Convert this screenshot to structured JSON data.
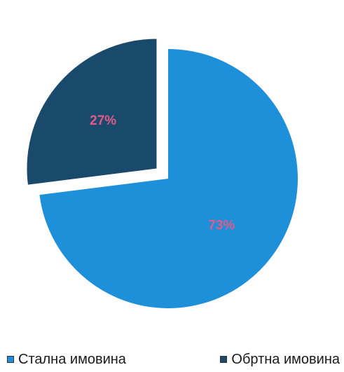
{
  "chart_data": {
    "type": "pie",
    "title": "",
    "categories": [
      "Стална имовина",
      "Обртна имовина"
    ],
    "values": [
      73,
      27
    ],
    "labels": [
      "73%",
      "27%"
    ],
    "colors": [
      "#1E8FD9",
      "#1A4A6B"
    ],
    "label_color": "#E05A8A",
    "exploded": [
      false,
      true
    ],
    "legend_position": "bottom"
  }
}
